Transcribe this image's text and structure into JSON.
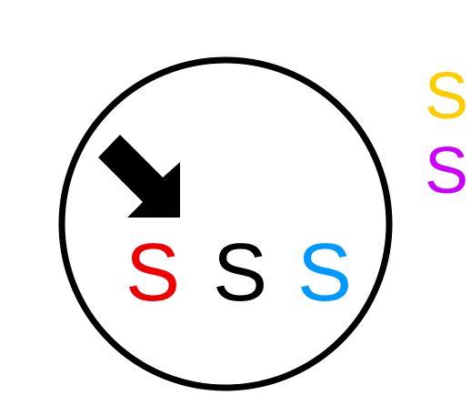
{
  "colors": {
    "background": "#ffffff",
    "circle_stroke": "#000000",
    "arrow": "#000000",
    "red": "#ee0000",
    "black": "#000000",
    "blue": "#0099ff",
    "yellow": "#ffcc00",
    "purple": "#cc00ff"
  },
  "circle_letters": {
    "red": "S",
    "black": "S",
    "blue": "S"
  },
  "side_letters": {
    "yellow": "S",
    "purple": "S"
  },
  "icons": {
    "arrow": "arrow-down-right-icon"
  }
}
